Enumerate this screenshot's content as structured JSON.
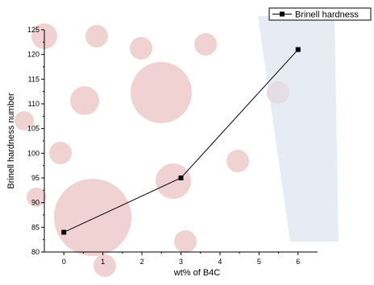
{
  "chart_data": {
    "type": "line",
    "x": [
      0,
      3,
      6
    ],
    "series": [
      {
        "name": "Brinell hardness",
        "values": [
          84,
          95,
          121
        ]
      }
    ],
    "xlabel": "wt% of B4C",
    "ylabel": "Brinell hardness number",
    "xlim": [
      -0.5,
      6.5
    ],
    "ylim": [
      80,
      125
    ],
    "xticks": [
      0,
      1,
      2,
      3,
      4,
      5,
      6
    ],
    "yticks": [
      80,
      85,
      90,
      95,
      100,
      105,
      110,
      115,
      120,
      125
    ],
    "legend": "top-right",
    "grid": false,
    "colors": {
      "line": "#000000",
      "marker": "#000000",
      "watermark": "#e8b4b4",
      "watermark_band": "#dde2ee"
    }
  }
}
